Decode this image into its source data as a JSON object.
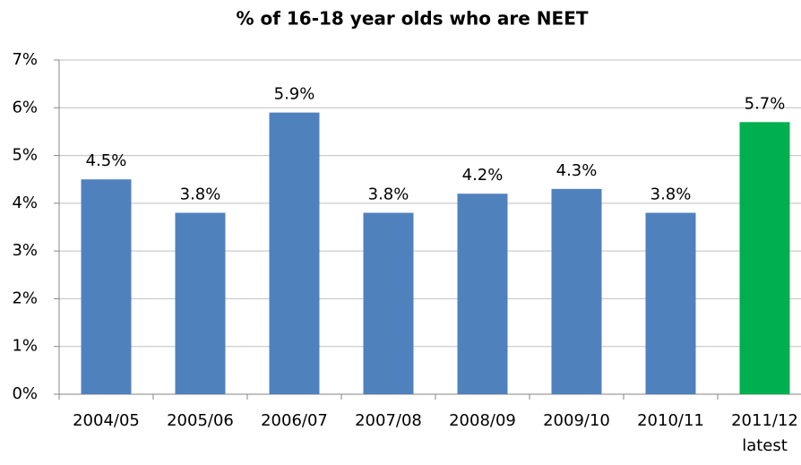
{
  "chart_data": {
    "type": "bar",
    "title": "% of 16-18 year olds who are NEET",
    "categories": [
      "2004/05",
      "2005/06",
      "2006/07",
      "2007/08",
      "2008/09",
      "2009/10",
      "2010/11",
      "2011/12\nlatest"
    ],
    "values": [
      4.5,
      3.8,
      5.9,
      3.8,
      4.2,
      4.3,
      3.8,
      5.7
    ],
    "value_labels": [
      "4.5%",
      "3.8%",
      "5.9%",
      "3.8%",
      "4.2%",
      "4.3%",
      "3.8%",
      "5.7%"
    ],
    "colors": [
      "#4f81bd",
      "#4f81bd",
      "#4f81bd",
      "#4f81bd",
      "#4f81bd",
      "#4f81bd",
      "#4f81bd",
      "#00b050"
    ],
    "ylim": [
      0,
      7
    ],
    "yticks": [
      {
        "value": 0,
        "label": "0%"
      },
      {
        "value": 1,
        "label": "1%"
      },
      {
        "value": 2,
        "label": "2%"
      },
      {
        "value": 3,
        "label": "3%"
      },
      {
        "value": 4,
        "label": "4%"
      },
      {
        "value": 5,
        "label": "5%"
      },
      {
        "value": 6,
        "label": "6%"
      },
      {
        "value": 7,
        "label": "7%"
      }
    ],
    "grid": true
  }
}
